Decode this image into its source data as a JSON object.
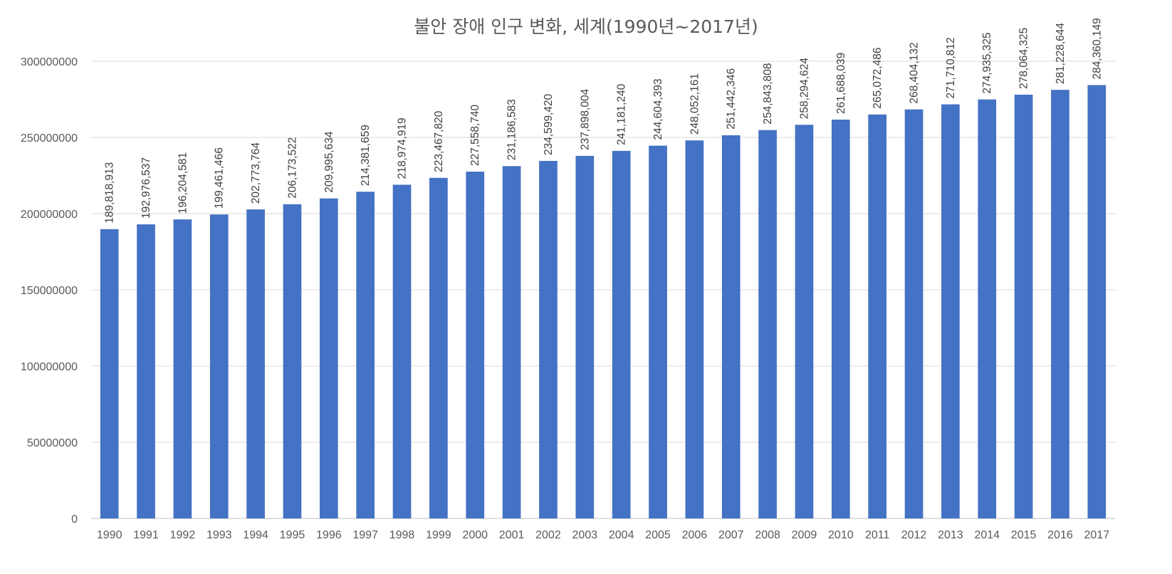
{
  "chart_data": {
    "type": "bar",
    "title": "불안 장애 인구 변화, 세계(1990년~2017년)",
    "xlabel": "",
    "ylabel": "",
    "ylim": [
      0,
      300000000
    ],
    "grid": true,
    "legend": "none",
    "bar_color": "#4472C4",
    "categories": [
      "1990",
      "1991",
      "1992",
      "1993",
      "1994",
      "1995",
      "1996",
      "1997",
      "1998",
      "1999",
      "2000",
      "2001",
      "2002",
      "2003",
      "2004",
      "2005",
      "2006",
      "2007",
      "2008",
      "2009",
      "2010",
      "2011",
      "2012",
      "2013",
      "2014",
      "2015",
      "2016",
      "2017"
    ],
    "values": [
      189818913,
      192976537,
      196204581,
      199461466,
      202773764,
      206173522,
      209995634,
      214381659,
      218974919,
      223467820,
      227558740,
      231186583,
      234599420,
      237898004,
      241181240,
      244604393,
      248052161,
      251442346,
      254843808,
      258294624,
      261688039,
      265072486,
      268404132,
      271710812,
      274935325,
      278064325,
      281228644,
      284360149
    ],
    "data_labels": [
      "189,818,913",
      "192,976,537",
      "196,204,581",
      "199,461,466",
      "202,773,764",
      "206,173,522",
      "209,995,634",
      "214,381,659",
      "218,974,919",
      "223,467,820",
      "227,558,740",
      "231,186,583",
      "234,599,420",
      "237,898,004",
      "241,181,240",
      "244,604,393",
      "248,052,161",
      "251,442,346",
      "254,843,808",
      "258,294,624",
      "261,688,039",
      "265,072,486",
      "268,404,132",
      "271,710,812",
      "274,935,325",
      "278,064,325",
      "281,228,644",
      "284,360,149"
    ],
    "y_ticks": [
      0,
      50000000,
      100000000,
      150000000,
      200000000,
      250000000,
      300000000
    ],
    "y_tick_labels": [
      "0",
      "50000000",
      "100000000",
      "150000000",
      "200000000",
      "250000000",
      "300000000"
    ]
  }
}
